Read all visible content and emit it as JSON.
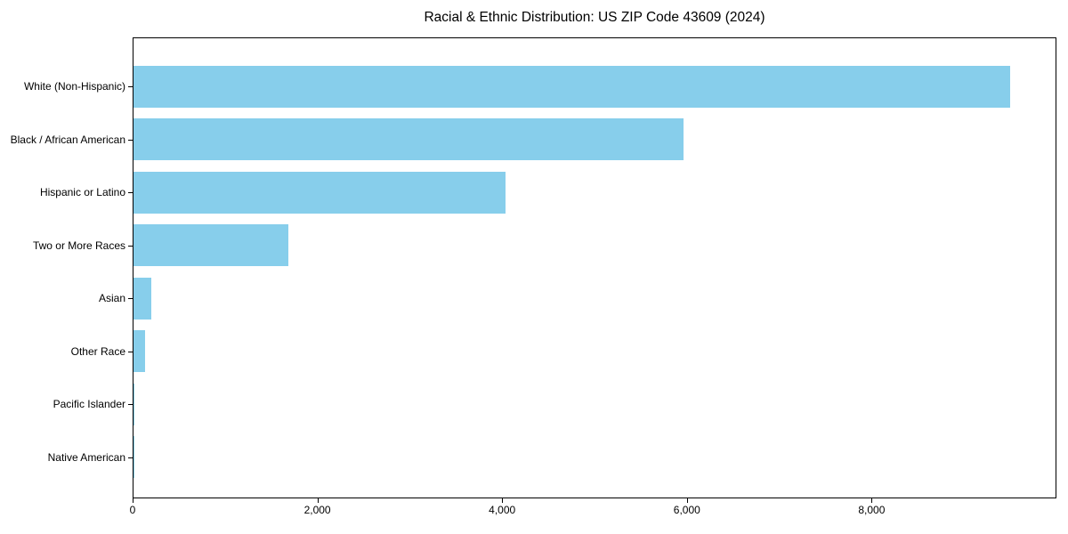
{
  "page": {
    "background": "#ffffff"
  },
  "chart_data": {
    "type": "bar",
    "orientation": "horizontal",
    "title": "Racial & Ethnic Distribution: US ZIP Code 43609 (2024)",
    "categories": [
      "White (Non-Hispanic)",
      "Black / African American",
      "Hispanic or Latino",
      "Two or More Races",
      "Asian",
      "Other Race",
      "Pacific Islander",
      "Native American"
    ],
    "values": [
      9510,
      5970,
      4030,
      1680,
      195,
      125,
      12,
      6
    ],
    "xlabel": "",
    "ylabel": "",
    "xlim": [
      0,
      10000
    ],
    "xticks": [
      0,
      2000,
      4000,
      6000,
      8000
    ],
    "xtick_labels": [
      "0",
      "2,000",
      "4,000",
      "6,000",
      "8,000"
    ],
    "bar_color": "#87CEEB",
    "axis_color": "#000000",
    "text_color": "#000000",
    "grid": false,
    "legend": null
  }
}
